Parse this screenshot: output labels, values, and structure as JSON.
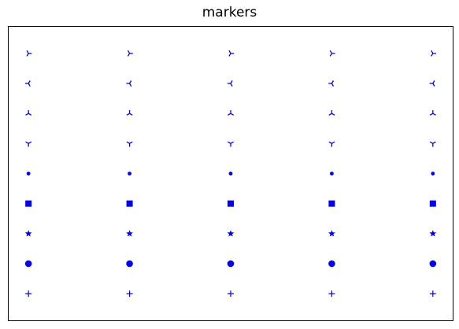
{
  "chart_data": {
    "type": "scatter",
    "title": "markers",
    "xlabel": "",
    "ylabel": "",
    "axes_ticks_visible": false,
    "grid": false,
    "xlim": [
      -0.2,
      4.2
    ],
    "ylim": [
      -0.9,
      8.9
    ],
    "marker_color": "#0000ff",
    "series": [
      {
        "marker": "plus",
        "x": [
          0,
          1,
          2,
          3,
          4
        ],
        "y": [
          0,
          0,
          0,
          0,
          0
        ]
      },
      {
        "marker": "circle",
        "x": [
          0,
          1,
          2,
          3,
          4
        ],
        "y": [
          1,
          1,
          1,
          1,
          1
        ]
      },
      {
        "marker": "star",
        "x": [
          0,
          1,
          2,
          3,
          4
        ],
        "y": [
          2,
          2,
          2,
          2,
          2
        ]
      },
      {
        "marker": "square",
        "x": [
          0,
          1,
          2,
          3,
          4
        ],
        "y": [
          3,
          3,
          3,
          3,
          3
        ]
      },
      {
        "marker": "point",
        "x": [
          0,
          1,
          2,
          3,
          4
        ],
        "y": [
          4,
          4,
          4,
          4,
          4
        ]
      },
      {
        "marker": "tri_down",
        "x": [
          0,
          1,
          2,
          3,
          4
        ],
        "y": [
          5,
          5,
          5,
          5,
          5
        ]
      },
      {
        "marker": "tri_up",
        "x": [
          0,
          1,
          2,
          3,
          4
        ],
        "y": [
          6,
          6,
          6,
          6,
          6
        ]
      },
      {
        "marker": "tri_left",
        "x": [
          0,
          1,
          2,
          3,
          4
        ],
        "y": [
          7,
          7,
          7,
          7,
          7
        ]
      },
      {
        "marker": "tri_right",
        "x": [
          0,
          1,
          2,
          3,
          4
        ],
        "y": [
          8,
          8,
          8,
          8,
          8
        ]
      }
    ]
  }
}
